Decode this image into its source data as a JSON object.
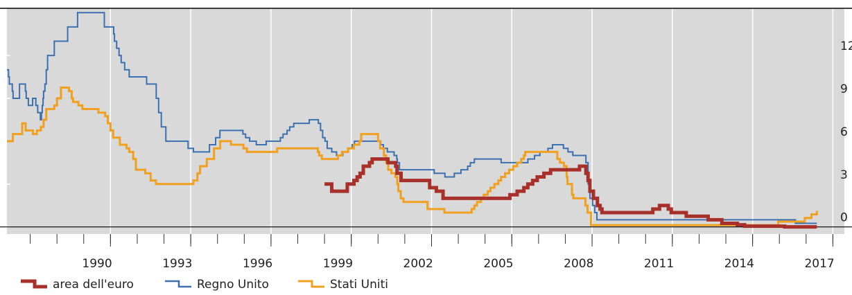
{
  "chart_data": {
    "type": "line",
    "step": true,
    "xlim": [
      1987.13,
      2018.43
    ],
    "ylim": [
      -0.5,
      15.3
    ],
    "xticks": [
      1990,
      1993,
      1996,
      1999,
      2002,
      2005,
      2008,
      2011,
      2014,
      2017
    ],
    "yticks": [
      0,
      3,
      6,
      9,
      12
    ],
    "y_axis_side": "right",
    "grid": true,
    "legend": "bottom",
    "series": [
      {
        "name": "area dell'euro",
        "color": "#a8302a",
        "width": 5,
        "x": [
          1999.0,
          1999.27,
          1999.85,
          2000.1,
          2000.22,
          2000.33,
          2000.45,
          2000.68,
          2000.78,
          2001.37,
          2001.66,
          2001.71,
          2001.86,
          2002.93,
          2003.18,
          2003.43,
          2005.93,
          2006.2,
          2006.45,
          2006.6,
          2006.78,
          2006.95,
          2007.2,
          2007.45,
          2008.53,
          2008.77,
          2008.85,
          2008.92,
          2009.05,
          2009.2,
          2009.3,
          2009.37,
          2011.27,
          2011.52,
          2011.85,
          2011.96,
          2012.52,
          2013.34,
          2013.85,
          2014.43,
          2014.7,
          2016.2,
          2017.4
        ],
        "values": [
          3,
          2.5,
          3,
          3.25,
          3.5,
          3.75,
          4.25,
          4.5,
          4.75,
          4.5,
          4.25,
          3.75,
          3.25,
          2.75,
          2.5,
          2,
          2.25,
          2.5,
          2.75,
          3,
          3.25,
          3.5,
          3.75,
          4,
          4.25,
          3.75,
          3.25,
          2.5,
          2,
          1.5,
          1.25,
          1,
          1.25,
          1.5,
          1.25,
          1,
          0.75,
          0.5,
          0.25,
          0.15,
          0.05,
          0,
          0
        ]
      },
      {
        "name": "Regno Unito",
        "color": "#3b6fb0",
        "width": 2,
        "x": [
          1987.13,
          1987.19,
          1987.22,
          1987.33,
          1987.36,
          1987.6,
          1987.82,
          1987.85,
          1987.93,
          1988.09,
          1988.21,
          1988.28,
          1988.38,
          1988.42,
          1988.45,
          1988.48,
          1988.5,
          1988.55,
          1988.6,
          1988.65,
          1988.9,
          1989.4,
          1989.77,
          1990.77,
          1991.12,
          1991.15,
          1991.23,
          1991.32,
          1991.4,
          1991.53,
          1991.7,
          1992.35,
          1992.71,
          1992.8,
          1992.9,
          1993.07,
          1993.9,
          1994.1,
          1994.7,
          1994.93,
          1995.09,
          1995.95,
          1996.05,
          1996.2,
          1996.45,
          1996.82,
          1997.35,
          1997.45,
          1997.6,
          1997.7,
          1997.85,
          1998.43,
          1998.77,
          1998.85,
          1998.93,
          1999.02,
          1999.1,
          1999.27,
          1999.45,
          1999.68,
          1999.87,
          2000.03,
          2000.12,
          2001.1,
          2001.2,
          2001.35,
          2001.6,
          2001.7,
          2001.72,
          2001.8,
          2003.1,
          2003.5,
          2003.85,
          2004.1,
          2004.35,
          2004.45,
          2004.6,
          2005.6,
          2006.6,
          2006.85,
          2007.05,
          2007.35,
          2007.52,
          2007.93,
          2008.1,
          2008.28,
          2008.77,
          2008.85,
          2008.92,
          2009.02,
          2009.1,
          2009.18,
          2016.6,
          2017.4
        ],
        "values": [
          11,
          10.5,
          10,
          9.5,
          9,
          10,
          9.5,
          9,
          8.5,
          9,
          8.5,
          8,
          7.5,
          8,
          8.5,
          9,
          9.5,
          10,
          11,
          12,
          13,
          14,
          15,
          14,
          13.5,
          13,
          12.5,
          12,
          11.5,
          11,
          10.5,
          10,
          9,
          8,
          7,
          6,
          5.5,
          5.25,
          5.75,
          6.25,
          6.75,
          6.5,
          6.25,
          6,
          5.75,
          6,
          6.25,
          6.5,
          6.75,
          7,
          7.25,
          7.5,
          7.25,
          6.75,
          6.25,
          6,
          5.5,
          5.25,
          5,
          5.25,
          5.5,
          5.75,
          6,
          5.75,
          5.5,
          5.25,
          5,
          4.75,
          4.5,
          4,
          3.75,
          3.5,
          3.75,
          4,
          4.25,
          4.5,
          4.75,
          4.5,
          4.75,
          5,
          5.25,
          5.5,
          5.75,
          5.5,
          5.25,
          5,
          4.5,
          3,
          2,
          1.5,
          1,
          0.5,
          0.25,
          0.25
        ]
      },
      {
        "name": "Stati Uniti",
        "color": "#f0a01e",
        "width": 3,
        "x": [
          1987.13,
          1987.35,
          1987.7,
          1987.83,
          1988.1,
          1988.25,
          1988.4,
          1988.5,
          1988.6,
          1988.9,
          1989.0,
          1989.15,
          1989.45,
          1989.55,
          1989.6,
          1989.8,
          1989.95,
          1990.55,
          1990.8,
          1990.9,
          1991.0,
          1991.1,
          1991.35,
          1991.6,
          1991.7,
          1991.85,
          1991.95,
          1992.3,
          1992.5,
          1992.7,
          1994.1,
          1994.25,
          1994.35,
          1994.6,
          1994.87,
          1995.1,
          1995.5,
          1995.97,
          1996.1,
          1997.23,
          1998.75,
          1998.8,
          1998.9,
          1999.5,
          1999.65,
          1999.88,
          2000.1,
          2000.3,
          2000.37,
          2001.0,
          2001.08,
          2001.22,
          2001.3,
          2001.38,
          2001.5,
          2001.65,
          2001.72,
          2001.76,
          2001.85,
          2001.95,
          2002.85,
          2003.48,
          2004.5,
          2004.6,
          2004.7,
          2004.85,
          2004.95,
          2005.1,
          2005.2,
          2005.35,
          2005.5,
          2005.6,
          2005.75,
          2005.9,
          2006.05,
          2006.2,
          2006.35,
          2006.45,
          2006.5,
          2007.7,
          2007.8,
          2007.95,
          2008.05,
          2008.08,
          2008.25,
          2008.3,
          2008.75,
          2008.83,
          2008.96,
          2015.96,
          2016.95,
          2017.2,
          2017.4
        ],
        "values": [
          6,
          6.5,
          7.25,
          6.75,
          6.5,
          6.75,
          7,
          7.5,
          8.25,
          8.5,
          9,
          9.75,
          9.5,
          9,
          8.75,
          8.5,
          8.25,
          8,
          7.75,
          7.25,
          6.75,
          6.25,
          5.75,
          5.5,
          5.25,
          4.75,
          4,
          3.75,
          3.25,
          3,
          3.25,
          3.75,
          4.25,
          4.75,
          5.5,
          6,
          5.75,
          5.5,
          5.25,
          5.5,
          5.25,
          5,
          4.75,
          5,
          5.25,
          5.5,
          5.75,
          6,
          6.5,
          6,
          5.5,
          5,
          4.5,
          4,
          3.75,
          3.5,
          3,
          2.5,
          2,
          1.75,
          1.25,
          1,
          1.25,
          1.5,
          1.75,
          2,
          2.25,
          2.5,
          2.75,
          3,
          3.25,
          3.5,
          3.75,
          4,
          4.25,
          4.5,
          4.75,
          5,
          5.25,
          4.75,
          4.5,
          4.25,
          3.5,
          3,
          2.25,
          2,
          1.5,
          1,
          0.125,
          0.375,
          0.625,
          0.875,
          1.125
        ]
      }
    ]
  }
}
